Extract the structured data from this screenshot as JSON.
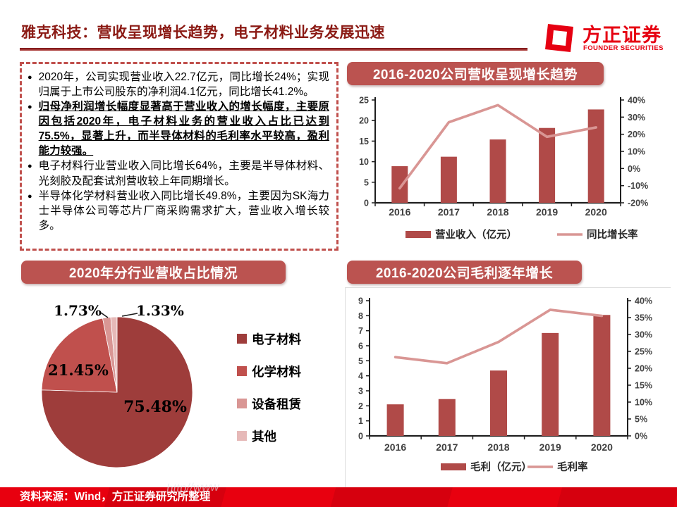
{
  "header": {
    "title": "雅克科技：营收呈现增长趋势，电子材料业务发展迅速"
  },
  "brand": {
    "cn": "方正证券",
    "en": "FOUNDER SECURITIES",
    "accent_color": "#E60012"
  },
  "bullets": [
    "2020年，公司实现营业收入22.7亿元，同比增长24%；实现归属于上市公司股东的净利润4.1亿元，同比增长41.2%。",
    "归母净利润增长幅度显著高于营业收入的增长幅度，主要原因包括2020年，电子材料业务的营业收入占比已达到75.5%，显著上升，而半导体材料的毛利率水平较高，盈利能力较强。",
    "电子材料行业营业收入同比增长64%，主要是半导体材料、光刻胶及配套试剂营收较上年同期增长。",
    "半导体化学材料营业收入同比增长49.8%，主要因为SK海力士半导体公司等芯片厂商采购需求扩大，营业收入增长较多。"
  ],
  "chart_data": [
    {
      "type": "bar+line",
      "title": "2016-2020公司营收呈现增长趋势",
      "categories": [
        "2016",
        "2017",
        "2018",
        "2019",
        "2020"
      ],
      "series": [
        {
          "name": "营业收入（亿元）",
          "type": "bar",
          "axis": "left",
          "color": "#B04A48",
          "values": [
            8.9,
            11.2,
            15.4,
            18.2,
            22.7
          ]
        },
        {
          "name": "同比增长率",
          "type": "line",
          "axis": "right",
          "unit": "%",
          "color": "#D99694",
          "values": [
            -11.5,
            27,
            37,
            18.5,
            24
          ]
        }
      ],
      "left_axis": {
        "min": 0,
        "max": 25,
        "step": 5
      },
      "right_axis": {
        "min": -20,
        "max": 40,
        "step": 10,
        "suffix": "%"
      },
      "legend_position": "bottom",
      "grid": false
    },
    {
      "type": "pie",
      "title": "2020年分行业营收占比情况",
      "slices": [
        {
          "label": "电子材料",
          "value": 75.48,
          "color": "#9E3D3B"
        },
        {
          "label": "化学材料",
          "value": 21.45,
          "color": "#C0504D"
        },
        {
          "label": "设备租赁",
          "value": 1.73,
          "color": "#D99694"
        },
        {
          "label": "其他",
          "value": 1.33,
          "color": "#E6B9B8"
        }
      ],
      "start_angle": "top-clockwise",
      "legend_position": "right"
    },
    {
      "type": "bar+line",
      "title": "2016-2020公司毛利逐年增长",
      "categories": [
        "2016",
        "2017",
        "2018",
        "2019",
        "2020"
      ],
      "series": [
        {
          "name": "毛利（亿元）",
          "type": "bar",
          "axis": "left",
          "color": "#B04A48",
          "values": [
            2.1,
            2.45,
            4.35,
            6.85,
            8.05
          ]
        },
        {
          "name": "毛利率",
          "type": "line",
          "axis": "right",
          "unit": "%",
          "color": "#D99694",
          "values": [
            23.3,
            21.5,
            27.8,
            37.3,
            35.5
          ]
        }
      ],
      "left_axis": {
        "min": 0,
        "max": 9,
        "step": 1
      },
      "right_axis": {
        "min": 0,
        "max": 40,
        "step": 5,
        "suffix": "%"
      },
      "legend_position": "bottom",
      "grid": false
    }
  ],
  "footer": {
    "source": "资料来源：Wind，方正证券研究所整理",
    "watermark": "http//www"
  },
  "colors": {
    "accent_red": "#E60012",
    "banner_red": "#BB5350",
    "bar_red": "#B04A48",
    "line_pink": "#D99694",
    "title_maroon": "#8B1A14",
    "dashed_border": "#C0504D"
  }
}
